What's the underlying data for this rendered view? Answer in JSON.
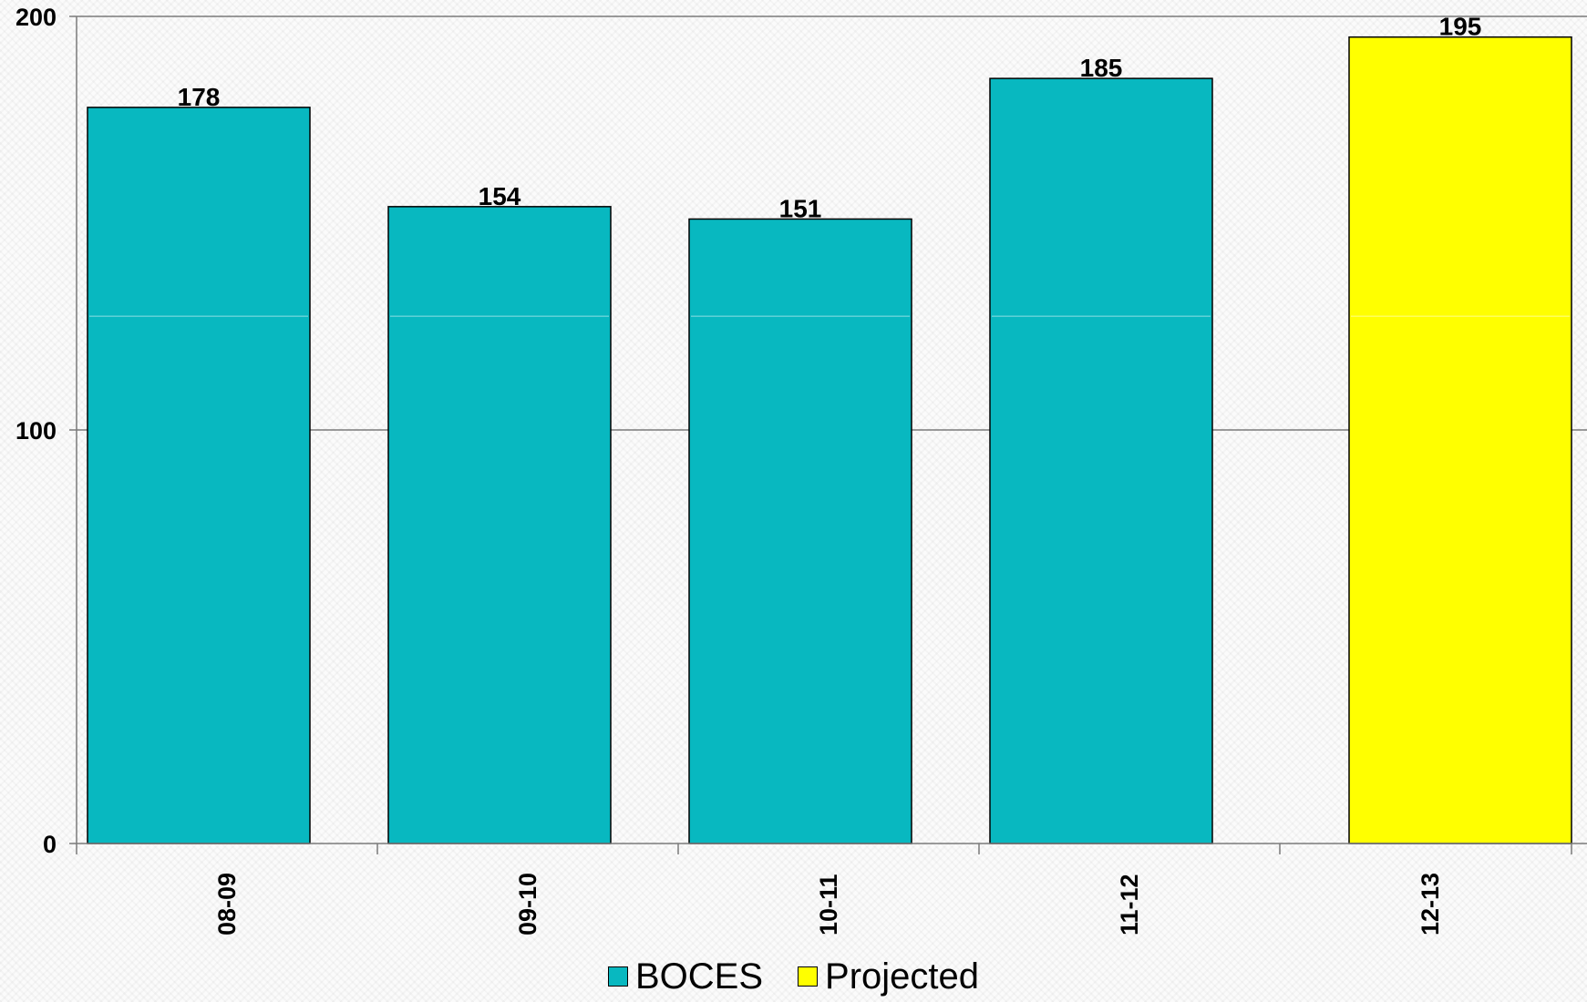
{
  "chart_data": {
    "type": "bar",
    "title": "",
    "xlabel": "",
    "ylabel": "",
    "categories": [
      "08-09",
      "09-10",
      "10-11",
      "11-12",
      "12-13"
    ],
    "series": [
      {
        "name": "BOCES",
        "values": [
          178,
          154,
          151,
          185,
          null
        ],
        "color": "#08b8c0"
      },
      {
        "name": "Projected",
        "values": [
          null,
          null,
          null,
          null,
          195
        ],
        "color": "#ffff00"
      }
    ],
    "data_labels": [
      "178",
      "154",
      "151",
      "185",
      "195"
    ],
    "yticks": [
      "0",
      "100",
      "200"
    ],
    "ylim": [
      0,
      200
    ],
    "grid": true,
    "legend": {
      "position": "bottom"
    }
  }
}
